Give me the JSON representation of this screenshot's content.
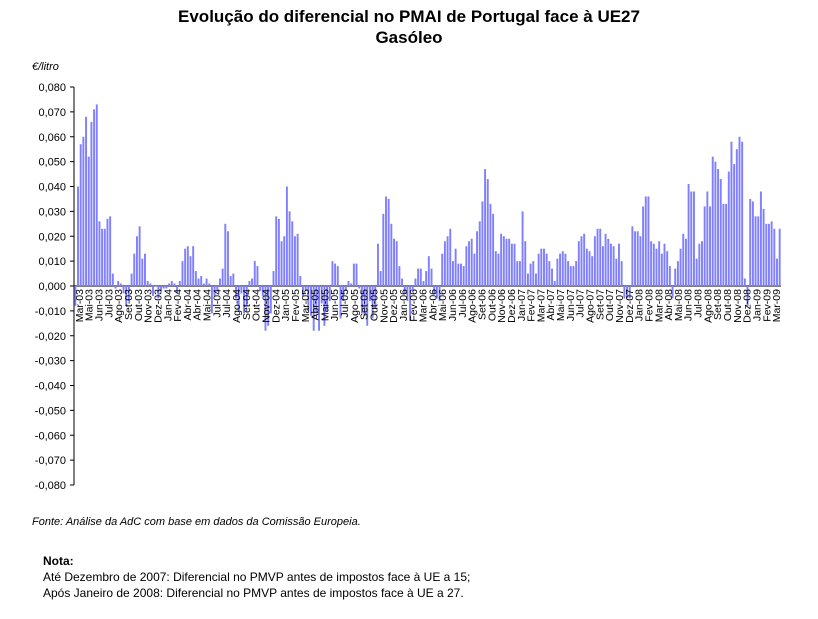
{
  "title_line1": "Evolução do diferencial no PMAI de Portugal face à UE27",
  "title_line2": "Gasóleo",
  "source": "Fonte: Análise da AdC com base em dados da Comissão Europeia.",
  "note": {
    "title": "Nota:",
    "line1": "Até Dezembro de 2007: Diferencial no PMVP antes de impostos face à UE a 15;",
    "line2": "Após Janeiro de 2008: Diferencial no PMVP antes de impostos face à UE a 27."
  },
  "colors": {
    "bar": "#8080FF",
    "bar_edge": "#6666EE",
    "axis": "#000000"
  },
  "chart_data": {
    "type": "bar",
    "ylabel": "€/litro",
    "ylim": [
      -0.08,
      0.08
    ],
    "yticks": [
      "0,080",
      "0,070",
      "0,060",
      "0,050",
      "0,040",
      "0,030",
      "0,020",
      "0,010",
      "0,000",
      "-0,010",
      "-0,020",
      "-0,030",
      "-0,040",
      "-0,050",
      "-0,060",
      "-0,070",
      "-0,080"
    ],
    "x_tick_labels": [
      "Mar-03",
      "Mai-03",
      "Jun-03",
      "Jul-03",
      "Ago-03",
      "Set-03",
      "Out-03",
      "Nov-03",
      "Dez-03",
      "Jan-04",
      "Fev-04",
      "Abr-04",
      "Abr-04",
      "Mai-04",
      "Jul-04",
      "Jul-04",
      "Ago-04",
      "Set-04",
      "Out-04",
      "Nov-04",
      "Dez-04",
      "Jan-05",
      "Fev-05",
      "Mar-05",
      "Abr-05",
      "Mai-05",
      "Jun-05",
      "Jul-05",
      "Ago-05",
      "Set-05",
      "Out-05",
      "Nov-05",
      "Dez-05",
      "Jan-06",
      "Fev-06",
      "Mar-06",
      "Abr-06",
      "Mai-06",
      "Jun-06",
      "Jul-06",
      "Ago-06",
      "Set-06",
      "Out-06",
      "Nov-06",
      "Dez-06",
      "Jan-07",
      "Fev-07",
      "Mar-07",
      "Abr-07",
      "Mai-07",
      "Jun-07",
      "Jul-07",
      "Ago-07",
      "Set-07",
      "Out-07",
      "Nov-07",
      "Dez-07",
      "Jan-08",
      "Fev-08",
      "Mar-08",
      "Abr-08",
      "Mai-08",
      "Jun-08",
      "Jul-08",
      "Ago-08",
      "Set-08",
      "Out-08",
      "Nov-08",
      "Dez-08",
      "Jan-09",
      "Fev-09",
      "Mar-09"
    ],
    "series": [
      {
        "values": [
          -0.008,
          0.04,
          0.057,
          0.06,
          0.068,
          0.052,
          0.066,
          0.071,
          0.073,
          0.026,
          0.023,
          0.023,
          0.027,
          0.028,
          0.005,
          -0.001,
          0.002,
          0.001,
          -0.003,
          -0.008,
          -0.006,
          0.005,
          0.013,
          0.02,
          0.024,
          0.011,
          0.013,
          0.002,
          0.001,
          -0.004,
          0.0,
          -0.005,
          -0.002,
          -0.001,
          -0.001,
          0.001,
          0.002,
          0.001,
          -0.003,
          0.002,
          0.01,
          0.015,
          0.016,
          0.012,
          0.016,
          0.006,
          0.003,
          0.004,
          0.001,
          0.003,
          0.001,
          -0.011,
          -0.004,
          -0.002,
          0.003,
          0.007,
          0.025,
          0.022,
          0.004,
          0.005,
          -0.005,
          -0.01,
          -0.003,
          -0.011,
          -0.008,
          0.002,
          0.003,
          0.01,
          0.008,
          -0.002,
          -0.004,
          -0.018,
          -0.016,
          -0.011,
          0.006,
          0.028,
          0.027,
          0.018,
          0.02,
          0.04,
          0.03,
          0.026,
          0.02,
          0.021,
          0.004,
          -0.004,
          -0.002,
          -0.01,
          -0.012,
          -0.018,
          -0.011,
          -0.018,
          -0.007,
          -0.016,
          -0.01,
          -0.006,
          0.01,
          0.009,
          0.008,
          -0.013,
          -0.006,
          -0.002,
          0.002,
          0.001,
          0.009,
          0.009,
          -0.001,
          -0.011,
          -0.012,
          -0.016,
          -0.006,
          -0.013,
          -0.009,
          0.017,
          0.006,
          0.029,
          0.036,
          0.035,
          0.025,
          0.019,
          0.018,
          0.008,
          0.003,
          -0.003,
          -0.006,
          -0.014,
          -0.002,
          0.003,
          0.007,
          0.007,
          0.002,
          0.006,
          0.012,
          0.007,
          -0.003,
          -0.005,
          -0.006,
          0.013,
          0.018,
          0.02,
          0.023,
          0.01,
          0.015,
          0.009,
          0.009,
          0.008,
          0.016,
          0.018,
          0.019,
          0.013,
          0.022,
          0.026,
          0.034,
          0.047,
          0.043,
          0.033,
          0.029,
          0.014,
          0.013,
          0.021,
          0.02,
          0.019,
          0.019,
          0.017,
          0.017,
          0.01,
          0.01,
          0.03,
          0.018,
          0.005,
          0.009,
          0.01,
          0.005,
          0.013,
          0.015,
          0.015,
          0.013,
          0.01,
          0.007,
          0.002,
          0.011,
          0.013,
          0.014,
          0.013,
          0.01,
          0.008,
          0.008,
          0.01,
          0.018,
          0.02,
          0.021,
          0.015,
          0.014,
          0.012,
          0.02,
          0.023,
          0.023,
          0.016,
          0.021,
          0.019,
          0.017,
          0.016,
          0.011,
          0.017,
          0.01,
          -0.005,
          -0.005,
          -0.005,
          0.024,
          0.022,
          0.022,
          0.02,
          0.032,
          0.036,
          0.036,
          0.018,
          0.017,
          0.015,
          0.018,
          0.013,
          0.017,
          0.014,
          0.008,
          -0.005,
          0.007,
          0.01,
          0.015,
          0.021,
          0.019,
          0.041,
          0.038,
          0.038,
          0.011,
          0.017,
          0.018,
          0.032,
          0.038,
          0.032,
          0.052,
          0.05,
          0.047,
          0.043,
          0.033,
          0.033,
          0.046,
          0.058,
          0.049,
          0.055,
          0.06,
          0.058,
          0.003,
          -0.008,
          0.035,
          0.034,
          0.028,
          0.028,
          0.038,
          0.031,
          0.025,
          0.025,
          0.026,
          0.023,
          0.011,
          0.023
        ]
      }
    ]
  }
}
